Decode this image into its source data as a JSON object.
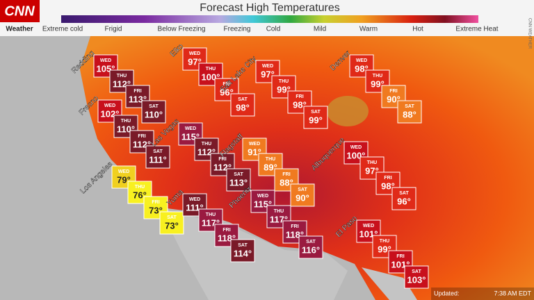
{
  "header": {
    "logo": "CNN",
    "section": "Weather",
    "title": "Forecast High Temperatures",
    "scale": [
      "Extreme cold",
      "Frigid",
      "Below Freezing",
      "Freezing",
      "Cold",
      "Mild",
      "Warm",
      "Hot",
      "Extreme Heat"
    ]
  },
  "days": [
    "WED",
    "THU",
    "FRI",
    "SAT"
  ],
  "cities": [
    {
      "name": "Redding",
      "temps": [
        "105°",
        "112°",
        "113°",
        "110°"
      ]
    },
    {
      "name": "Fresno",
      "temps": [
        "102°",
        "110°",
        "112°",
        "111°"
      ]
    },
    {
      "name": "Los Angeles",
      "temps": [
        "79°",
        "76°",
        "73°",
        "73°"
      ]
    },
    {
      "name": "Elko",
      "temps": [
        "97°",
        "100°",
        "96°",
        "98°"
      ]
    },
    {
      "name": "Las Vegas",
      "temps": [
        "115°",
        "112°",
        "112°",
        "113°"
      ]
    },
    {
      "name": "Yuma",
      "temps": [
        "111°",
        "117°",
        "118°",
        "114°"
      ]
    },
    {
      "name": "Salt Lake City",
      "temps": [
        "97°",
        "99°",
        "98°",
        "99°"
      ]
    },
    {
      "name": "Flagstaff",
      "temps": [
        "91°",
        "89°",
        "88°",
        "90°"
      ]
    },
    {
      "name": "Phoenix",
      "temps": [
        "115°",
        "117°",
        "118°",
        "116°"
      ]
    },
    {
      "name": "Denver",
      "temps": [
        "98°",
        "99°",
        "90°",
        "88°"
      ]
    },
    {
      "name": "Albuquerque",
      "temps": [
        "100°",
        "97°",
        "98°",
        "96°"
      ]
    },
    {
      "name": "El Paso",
      "temps": [
        "101°",
        "99°",
        "101°",
        "103°"
      ]
    }
  ],
  "footer": {
    "updated": "Updated:",
    "time": "7:38 AM EDT",
    "credit": "CNN WEATHER"
  }
}
